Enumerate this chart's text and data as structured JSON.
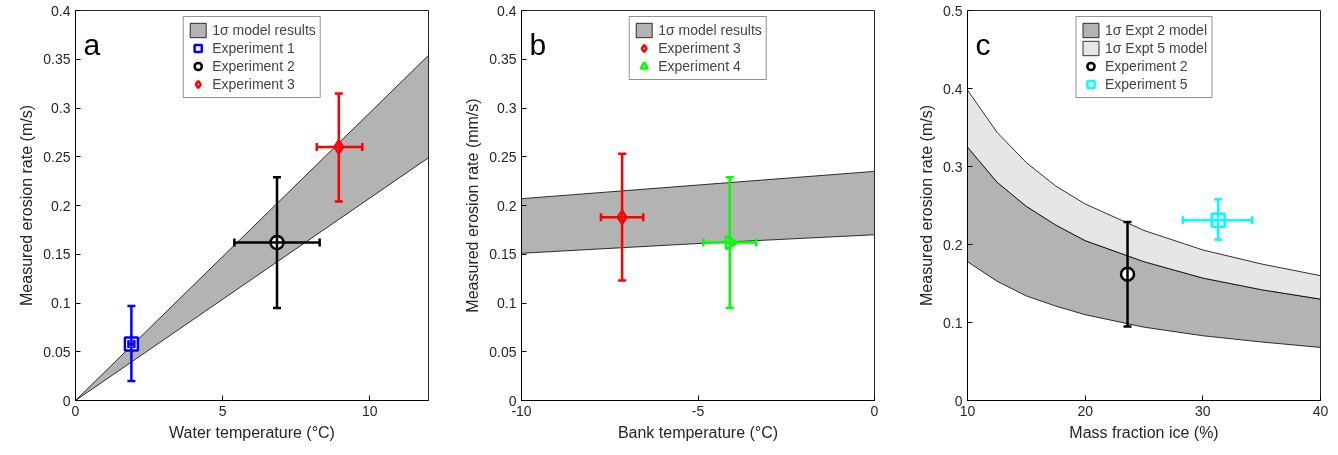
{
  "chart_data": [
    {
      "type": "scatter",
      "title": "a",
      "xlabel": "Water temperature (°C)",
      "ylabel": "Measured erosion rate (m/s)",
      "xlim": [
        0,
        12
      ],
      "ylim": [
        0,
        0.4
      ],
      "xticks": [
        0,
        5,
        10
      ],
      "yticks": [
        0,
        0.05,
        0.1,
        0.15,
        0.2,
        0.25,
        0.3,
        0.35,
        0.4
      ],
      "grid": false,
      "legend": "top",
      "series": [
        {
          "name": "1σ model results",
          "type": "area",
          "color": "#b3b3b3",
          "x": [
            0,
            12
          ],
          "values": [
            null,
            null
          ],
          "lower": [
            0,
            0.249
          ],
          "upper": [
            0,
            0.354
          ]
        },
        {
          "name": "Experiment 1",
          "marker": "square",
          "color": "#0000ff",
          "x": [
            1.9
          ],
          "values": [
            0.058
          ],
          "errors": [
            [
              0.02,
              0.097
            ]
          ],
          "xerrors": [
            [
              1.8,
              2.0
            ]
          ]
        },
        {
          "name": "Experiment 2",
          "marker": "circle",
          "color": "#000000",
          "x": [
            6.85
          ],
          "values": [
            0.162
          ],
          "errors": [
            [
              0.095,
              0.229
            ]
          ],
          "xerrors": [
            [
              5.4,
              8.3
            ]
          ]
        },
        {
          "name": "Experiment 3",
          "marker": "diamond",
          "color": "#ff0000",
          "x": [
            8.95
          ],
          "values": [
            0.26
          ],
          "errors": [
            [
              0.204,
              0.315
            ]
          ],
          "xerrors": [
            [
              8.2,
              9.75
            ]
          ]
        }
      ]
    },
    {
      "type": "scatter",
      "title": "b",
      "xlabel": "Bank temperature (°C)",
      "ylabel": "Measured erosion rate (mm/s)",
      "xlim": [
        -10,
        0
      ],
      "ylim": [
        0,
        0.4
      ],
      "xticks": [
        -10,
        -5,
        0
      ],
      "yticks": [
        0,
        0.05,
        0.1,
        0.15,
        0.2,
        0.25,
        0.3,
        0.35,
        0.4
      ],
      "grid": false,
      "legend": "top",
      "series": [
        {
          "name": "1σ model results",
          "type": "area",
          "color": "#b3b3b3",
          "x": [
            -10,
            -5,
            0
          ],
          "values": [
            null,
            null,
            null
          ],
          "lower": [
            0.151,
            0.161,
            0.17
          ],
          "upper": [
            0.207,
            0.221,
            0.235
          ]
        },
        {
          "name": "Experiment 3",
          "marker": "diamond",
          "color": "#ff0000",
          "x": [
            -7.15
          ],
          "values": [
            0.188
          ],
          "errors": [
            [
              0.123,
              0.253
            ]
          ],
          "xerrors": [
            [
              -7.75,
              -6.55
            ]
          ]
        },
        {
          "name": "Experiment 4",
          "marker": "triangle",
          "color": "#00ff00",
          "x": [
            -4.1
          ],
          "values": [
            0.162
          ],
          "errors": [
            [
              0.095,
              0.229
            ]
          ],
          "xerrors": [
            [
              -4.85,
              -3.35
            ]
          ]
        }
      ]
    },
    {
      "type": "scatter",
      "title": "c",
      "xlabel": "Mass fraction ice (%)",
      "ylabel": "Measured erosion rate (m/s)",
      "xlim": [
        10,
        40
      ],
      "ylim": [
        0,
        0.5
      ],
      "xticks": [
        10,
        20,
        30,
        40
      ],
      "yticks": [
        0,
        0.1,
        0.2,
        0.3,
        0.4,
        0.5
      ],
      "grid": false,
      "legend": "top",
      "series": [
        {
          "name": "1σ Expt 2 model",
          "type": "area",
          "color": "#b3b3b3",
          "x": [
            10,
            12.5,
            15,
            17.5,
            20,
            25,
            30,
            35,
            40
          ],
          "values": [
            null,
            null,
            null,
            null,
            null,
            null,
            null,
            null,
            null
          ],
          "lower": [
            0.178,
            0.153,
            0.134,
            0.121,
            0.11,
            0.094,
            0.083,
            0.075,
            0.068
          ],
          "upper": [
            0.325,
            0.28,
            0.249,
            0.225,
            0.205,
            0.178,
            0.157,
            0.142,
            0.13
          ]
        },
        {
          "name": "1σ Expt 5 model",
          "type": "area",
          "color": "#e6e6e6",
          "x": [
            10,
            12.5,
            15,
            17.5,
            20,
            25,
            30,
            35,
            40
          ],
          "values": [
            null,
            null,
            null,
            null,
            null,
            null,
            null,
            null,
            null
          ],
          "lower": [
            0.325,
            0.28,
            0.249,
            0.225,
            0.205,
            0.178,
            0.157,
            0.142,
            0.13
          ],
          "upper": [
            0.398,
            0.344,
            0.305,
            0.275,
            0.252,
            0.218,
            0.193,
            0.175,
            0.16
          ]
        },
        {
          "name": "Experiment 2",
          "marker": "circle",
          "color": "#000000",
          "x": [
            23.6
          ],
          "values": [
            0.162
          ],
          "errors": [
            [
              0.095,
              0.229
            ]
          ]
        },
        {
          "name": "Experiment 5",
          "marker": "square",
          "color": "#00ffff",
          "x": [
            31.3
          ],
          "values": [
            0.231
          ],
          "errors": [
            [
              0.206,
              0.258
            ]
          ],
          "xerrors": [
            [
              28.3,
              34.2
            ]
          ]
        }
      ]
    }
  ]
}
